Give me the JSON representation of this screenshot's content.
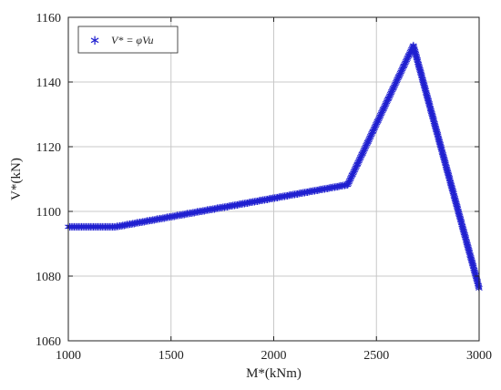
{
  "chart_data": {
    "type": "scatter",
    "title": "",
    "xlabel": "M*(kNm)",
    "ylabel": "V*(kN)",
    "xlim": [
      1000,
      3000
    ],
    "ylim": [
      1060,
      1160
    ],
    "xticks": [
      1000,
      1500,
      2000,
      2500,
      3000
    ],
    "yticks": [
      1060,
      1080,
      1100,
      1120,
      1140,
      1160
    ],
    "xtick_labels": [
      "1000",
      "1500",
      "2000",
      "2500",
      "3000"
    ],
    "ytick_labels": [
      "1060",
      "1080",
      "1100",
      "1120",
      "1140",
      "1160"
    ],
    "grid": true,
    "legend_position": "top-left",
    "marker": "asterisk",
    "series": [
      {
        "name": "V* = φVu",
        "color": "#2020d0",
        "points": [
          [
            1000,
            1095.5
          ],
          [
            1230,
            1095.5
          ],
          [
            2360,
            1108.5
          ],
          [
            2680,
            1151.5
          ],
          [
            3000,
            1076.5
          ]
        ]
      }
    ]
  }
}
